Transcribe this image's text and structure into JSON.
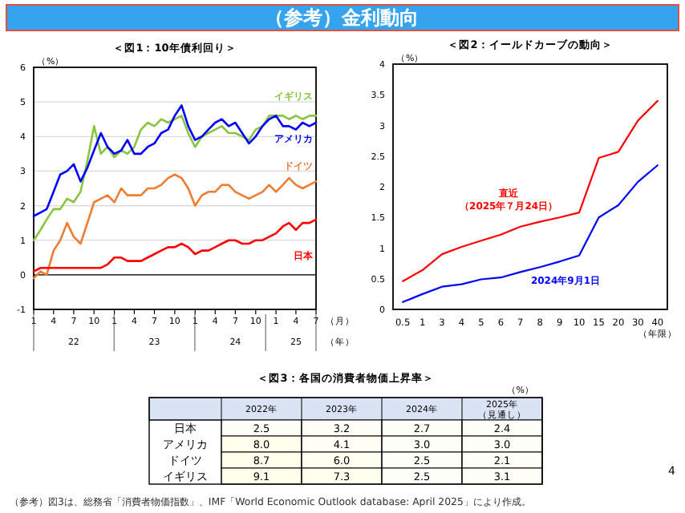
{
  "chart_data": [
    {
      "type": "other",
      "title": "（参考）金利動向",
      "annotations": [
        "（参考）図3は、総務省「消費者物価指数」、IMF「World Economic Outlook database: April 2025」により作成。",
        "4"
      ]
    },
    {
      "type": "line",
      "title": "＜図1：10年債利回り＞",
      "ylabel": "（%）",
      "xlabel": "（月）",
      "x2label": "（年）",
      "grid": "y",
      "legend": false,
      "x": [
        "2022-01",
        "2022-02",
        "2022-03",
        "2022-04",
        "2022-05",
        "2022-06",
        "2022-07",
        "2022-08",
        "2022-09",
        "2022-10",
        "2022-11",
        "2022-12",
        "2023-01",
        "2023-02",
        "2023-03",
        "2023-04",
        "2023-05",
        "2023-06",
        "2023-07",
        "2023-08",
        "2023-09",
        "2023-10",
        "2023-11",
        "2023-12",
        "2024-01",
        "2024-02",
        "2024-03",
        "2024-04",
        "2024-05",
        "2024-06",
        "2024-07",
        "2024-08",
        "2024-09",
        "2024-10",
        "2024-11",
        "2024-12",
        "2025-01",
        "2025-02",
        "2025-03",
        "2025-04",
        "2025-05",
        "2025-06",
        "2025-07"
      ],
      "xlim": [
        "2022-01",
        "2025-07"
      ],
      "xticks": [
        {
          "value": "2022-01",
          "label": "1"
        },
        {
          "value": "2022-04",
          "label": "4"
        },
        {
          "value": "2022-07",
          "label": "7"
        },
        {
          "value": "2022-10",
          "label": "10"
        },
        {
          "value": "2023-01",
          "label": "1"
        },
        {
          "value": "2023-04",
          "label": "4"
        },
        {
          "value": "2023-07",
          "label": "7"
        },
        {
          "value": "2023-10",
          "label": "10"
        },
        {
          "value": "2024-01",
          "label": "1"
        },
        {
          "value": "2024-04",
          "label": "4"
        },
        {
          "value": "2024-07",
          "label": "7"
        },
        {
          "value": "2024-10",
          "label": "10"
        },
        {
          "value": "2025-01",
          "label": "1"
        },
        {
          "value": "2025-04",
          "label": "4"
        },
        {
          "value": "2025-07",
          "label": "7"
        }
      ],
      "x2lim": [
        "2022-01",
        "2025-07"
      ],
      "x2ticks": [
        {
          "value": "2022-07",
          "label": "22"
        },
        {
          "value": "2023-07",
          "label": "23"
        },
        {
          "value": "2024-07",
          "label": "24"
        },
        {
          "value": "2025-04",
          "label": "25"
        }
      ],
      "ylim": [
        -1,
        6
      ],
      "yticks": [
        -1,
        0,
        1,
        2,
        3,
        4,
        5,
        6
      ],
      "ref_lines": [
        {
          "axis": "y",
          "value": 0,
          "color": "#000000"
        }
      ],
      "series": [
        {
          "name": "イギリス",
          "color": "#88c540",
          "values": [
            1.0,
            1.3,
            1.6,
            1.9,
            1.9,
            2.2,
            2.1,
            2.4,
            3.3,
            4.3,
            3.5,
            3.7,
            3.4,
            3.6,
            3.5,
            3.7,
            4.2,
            4.4,
            4.3,
            4.5,
            4.4,
            4.5,
            4.6,
            4.1,
            3.7,
            4.0,
            4.1,
            4.2,
            4.3,
            4.1,
            4.1,
            4.0,
            3.9,
            4.2,
            4.3,
            4.6,
            4.6,
            4.6,
            4.5,
            4.6,
            4.5,
            4.6,
            4.6
          ]
        },
        {
          "name": "アメリカ",
          "color": "#0000ff",
          "values": [
            1.7,
            1.8,
            1.9,
            2.4,
            2.9,
            3.0,
            3.2,
            2.7,
            3.1,
            3.6,
            4.1,
            3.7,
            3.5,
            3.6,
            3.9,
            3.5,
            3.5,
            3.7,
            3.8,
            4.1,
            4.2,
            4.6,
            4.9,
            4.3,
            3.9,
            4.0,
            4.2,
            4.4,
            4.5,
            4.3,
            4.4,
            4.1,
            3.8,
            4.0,
            4.3,
            4.5,
            4.6,
            4.3,
            4.3,
            4.2,
            4.4,
            4.3,
            4.4
          ]
        },
        {
          "name": "ドイツ",
          "color": "#ee7d31",
          "values": [
            -0.1,
            0.1,
            0.0,
            0.7,
            1.0,
            1.5,
            1.1,
            0.9,
            1.5,
            2.1,
            2.2,
            2.3,
            2.1,
            2.5,
            2.3,
            2.3,
            2.3,
            2.5,
            2.5,
            2.6,
            2.8,
            2.9,
            2.8,
            2.5,
            2.0,
            2.3,
            2.4,
            2.4,
            2.6,
            2.6,
            2.4,
            2.3,
            2.2,
            2.3,
            2.4,
            2.6,
            2.4,
            2.6,
            2.8,
            2.6,
            2.5,
            2.6,
            2.7
          ]
        },
        {
          "name": "日本",
          "color": "#ff0000",
          "values": [
            0.1,
            0.2,
            0.2,
            0.2,
            0.2,
            0.2,
            0.2,
            0.2,
            0.2,
            0.2,
            0.2,
            0.3,
            0.5,
            0.5,
            0.4,
            0.4,
            0.4,
            0.5,
            0.6,
            0.7,
            0.8,
            0.8,
            0.9,
            0.8,
            0.6,
            0.7,
            0.7,
            0.8,
            0.9,
            1.0,
            1.0,
            0.9,
            0.9,
            1.0,
            1.0,
            1.1,
            1.2,
            1.4,
            1.5,
            1.3,
            1.5,
            1.5,
            1.6
          ]
        }
      ]
    },
    {
      "type": "line",
      "title": "＜図2：イールドカーブの動向＞",
      "ylabel": "（%）",
      "xlabel": "（年限）",
      "legend": false,
      "categories": [
        "0.5",
        "1",
        "3",
        "4",
        "5",
        "6",
        "7",
        "8",
        "9",
        "10",
        "15",
        "20",
        "30",
        "40"
      ],
      "ylim": [
        0,
        4
      ],
      "yticks": [
        0,
        0.5,
        1,
        1.5,
        2,
        2.5,
        3,
        3.5,
        4
      ],
      "series": [
        {
          "name": "直近（2025年７月24日）",
          "color": "#ff0000",
          "values": [
            0.46,
            0.64,
            0.9,
            1.02,
            1.12,
            1.22,
            1.35,
            1.43,
            1.5,
            1.58,
            2.47,
            2.57,
            3.08,
            3.4
          ]
        },
        {
          "name": "2024年9月1日",
          "color": "#0000ff",
          "values": [
            0.12,
            0.25,
            0.37,
            0.41,
            0.49,
            0.52,
            0.61,
            0.69,
            0.78,
            0.88,
            1.5,
            1.7,
            2.08,
            2.35
          ]
        }
      ]
    },
    {
      "type": "heatmap",
      "title": "＜図3：各国の消費者物価上昇率＞",
      "annotations": [
        "（%）"
      ],
      "categories": [
        "2022年",
        "2023年",
        "2024年",
        "2025年（見通し）"
      ],
      "y_categories": [
        "日本",
        "アメリカ",
        "ドイツ",
        "イギリス"
      ],
      "cells": [
        [
          2.5,
          3.2,
          2.7,
          2.4
        ],
        [
          8.0,
          4.1,
          3.0,
          3.0
        ],
        [
          8.7,
          6.0,
          2.5,
          2.1
        ],
        [
          9.1,
          7.3,
          2.5,
          3.1
        ]
      ],
      "cell_labels": [
        [
          "2.5",
          "3.2",
          "2.7",
          "2.4"
        ],
        [
          "8.0",
          "4.1",
          "3.0",
          "3.0"
        ],
        [
          "8.7",
          "6.0",
          "2.5",
          "2.1"
        ],
        [
          "9.1",
          "7.3",
          "2.5",
          "3.1"
        ]
      ]
    }
  ]
}
